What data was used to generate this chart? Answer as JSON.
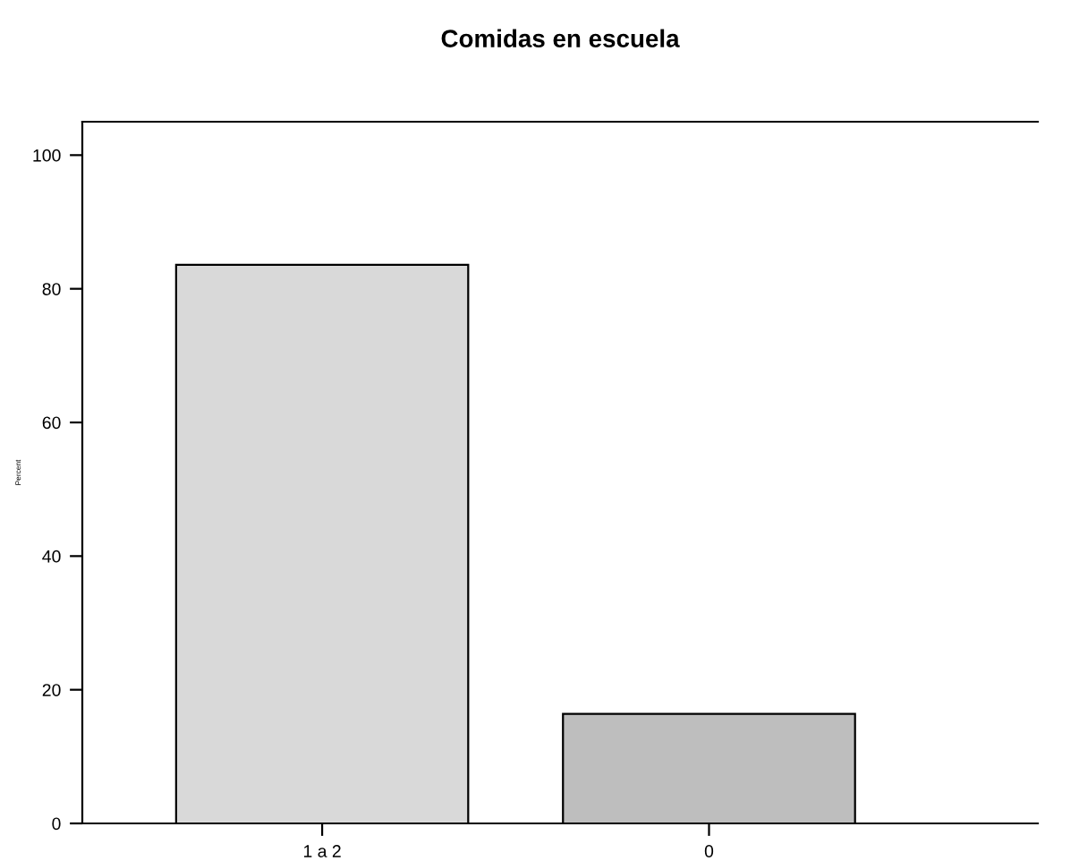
{
  "chart_data": {
    "type": "bar",
    "title": "Comidas en escuela",
    "ylabel": "Percent",
    "categories": [
      "1 a 2",
      "0"
    ],
    "values": [
      83.6,
      16.4
    ],
    "colors": [
      "#d9d9d9",
      "#bebebe"
    ],
    "ylim": [
      0,
      105
    ],
    "yticks": [
      0,
      20,
      40,
      60,
      80,
      100
    ],
    "grid": false,
    "legend": false
  }
}
